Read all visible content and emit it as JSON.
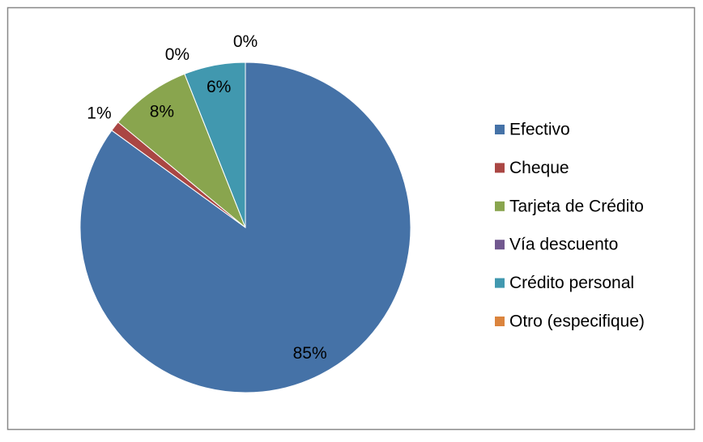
{
  "chart_data": {
    "type": "pie",
    "categories": [
      "Efectivo",
      "Cheque",
      "Tarjeta de Crédito",
      "Vía descuento",
      "Crédito personal",
      "Otro (especifique)"
    ],
    "values": [
      85,
      1,
      8,
      0,
      6,
      0
    ],
    "value_labels": [
      "85%",
      "1%",
      "8%",
      "0%",
      "6%",
      "0%"
    ],
    "colors": [
      "#4572a7",
      "#aa4643",
      "#89a54e",
      "#71588f",
      "#4198af",
      "#db843d"
    ],
    "legend": "right"
  }
}
